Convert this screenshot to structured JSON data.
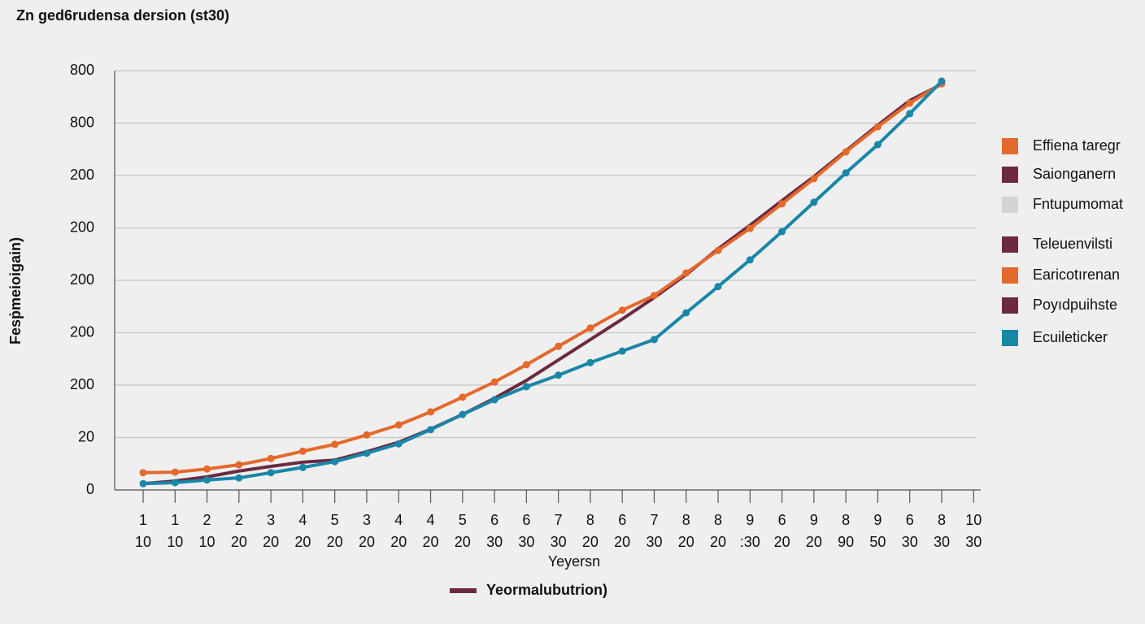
{
  "chart_data": {
    "type": "line",
    "title": "Zn ged6rudensa dersion (st30)",
    "x_label": "Yeyersn",
    "y_label": "Fesṗmeioigain)",
    "bottom_legend": {
      "name": "Yeormalubutrion)",
      "color": "#6b2a42"
    },
    "categories": [
      [
        "1",
        "10"
      ],
      [
        "1",
        "10"
      ],
      [
        "2",
        "10"
      ],
      [
        "2",
        "20"
      ],
      [
        "3",
        "20"
      ],
      [
        "4",
        "20"
      ],
      [
        "5",
        "20"
      ],
      [
        "3",
        "20"
      ],
      [
        "4",
        "20"
      ],
      [
        "4",
        "20"
      ],
      [
        "5",
        "20"
      ],
      [
        "6",
        "30"
      ],
      [
        "6",
        "30"
      ],
      [
        "7",
        "30"
      ],
      [
        "8",
        "20"
      ],
      [
        "6",
        "20"
      ],
      [
        "7",
        "30"
      ],
      [
        "8",
        "20"
      ],
      [
        "8",
        "20"
      ],
      [
        "9",
        ":30"
      ],
      [
        "6",
        "20"
      ],
      [
        "9",
        "20"
      ],
      [
        "8",
        "90"
      ],
      [
        "9",
        "50"
      ],
      [
        "6",
        "30"
      ],
      [
        "8",
        "30"
      ],
      [
        "10",
        "30"
      ]
    ],
    "ylim": [
      0,
      800
    ],
    "yticks": [
      0,
      {
        "value": 100,
        "label": "20"
      },
      {
        "value": 200,
        "label": "200"
      },
      {
        "value": 300,
        "label": "200"
      },
      {
        "value": 400,
        "label": "200"
      },
      {
        "value": 500,
        "label": "200"
      },
      {
        "value": 600,
        "label": "200"
      },
      {
        "value": 700,
        "label": "800"
      },
      800
    ],
    "grid": true,
    "legend": "right",
    "series": [
      {
        "name": "Effiena taregr",
        "color": "#e4692c",
        "markers": true,
        "values": [
          33,
          34,
          40,
          48,
          60,
          74,
          87,
          105,
          124,
          149,
          177,
          206,
          239,
          274,
          309,
          343,
          371,
          414,
          457,
          499,
          546,
          594,
          645,
          693,
          738,
          775,
          null
        ]
      },
      {
        "name": "Saionganern",
        "color": "#6b2a42",
        "markers": false,
        "values": [
          12,
          17,
          25,
          36,
          45,
          53,
          57,
          73,
          91,
          116,
          144,
          175,
          209,
          248,
          287,
          326,
          367,
          411,
          460,
          505,
          552,
          598,
          647,
          696,
          743,
          774,
          null
        ]
      },
      {
        "name": "Fntupumomat",
        "color": "#d4d4d4"
      },
      {
        "name": "Teleuenvilsti",
        "color": "#6b2a42"
      },
      {
        "name": "Earicotırenan",
        "color": "#e4692c"
      },
      {
        "name": "Poyıdpuihste",
        "color": "#6b2a42"
      },
      {
        "name": "Ecuileticker",
        "color": "#1a86a8",
        "markers": true,
        "values": [
          12,
          14,
          19,
          23,
          33,
          43,
          54,
          70,
          88,
          115,
          144,
          172,
          197,
          219,
          243,
          265,
          287,
          338,
          388,
          439,
          493,
          549,
          605,
          659,
          718,
          780,
          null
        ]
      }
    ]
  }
}
